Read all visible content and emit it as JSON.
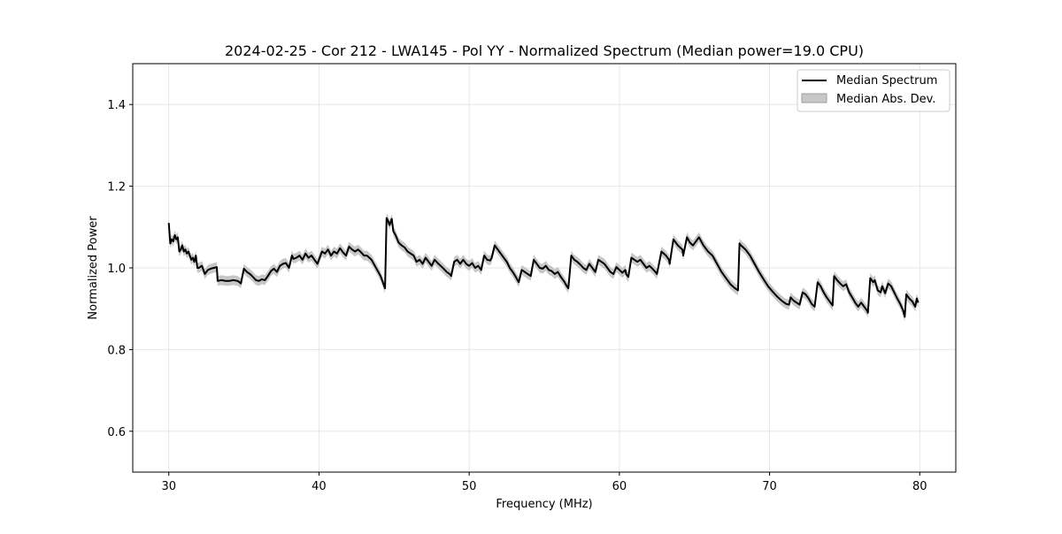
{
  "chart_data": {
    "type": "line",
    "title": "2024-02-25 - Cor 212 - LWA145 - Pol YY - Normalized Spectrum (Median power=19.0 CPU)",
    "xlabel": "Frequency (MHz)",
    "ylabel": "Normalized Power",
    "xlim": [
      27.6,
      82.4
    ],
    "ylim": [
      0.5,
      1.5
    ],
    "xticks": [
      30,
      40,
      50,
      60,
      70,
      80
    ],
    "xtick_labels": [
      "30",
      "40",
      "50",
      "60",
      "70",
      "80"
    ],
    "yticks": [
      0.6,
      0.8,
      1.0,
      1.2,
      1.4
    ],
    "ytick_labels": [
      "0.6",
      "0.8",
      "1.0",
      "1.2",
      "1.4"
    ],
    "grid": true,
    "legend_location": "top-right",
    "legend": [
      "Median Spectrum",
      "Median Abs. Dev."
    ],
    "colors": {
      "line": "#000000",
      "band": "#bdbdbd",
      "grid": "#e6e6e6"
    },
    "series": [
      {
        "name": "Median Spectrum",
        "x": [
          30.0,
          30.1,
          30.2,
          30.3,
          30.4,
          30.5,
          30.6,
          30.7,
          30.8,
          30.9,
          31.0,
          31.1,
          31.2,
          31.3,
          31.5,
          31.6,
          31.7,
          31.8,
          31.9,
          32.0,
          32.2,
          32.4,
          32.6,
          32.8,
          33.0,
          33.2,
          33.25,
          33.5,
          33.8,
          34.0,
          34.3,
          34.6,
          34.8,
          35.0,
          35.2,
          35.4,
          35.6,
          35.8,
          36.0,
          36.2,
          36.4,
          36.6,
          36.8,
          37.0,
          37.2,
          37.4,
          37.6,
          37.8,
          38.0,
          38.2,
          38.3,
          38.5,
          38.7,
          38.9,
          39.1,
          39.3,
          39.5,
          39.7,
          39.9,
          40.0,
          40.2,
          40.4,
          40.6,
          40.8,
          41.0,
          41.2,
          41.4,
          41.6,
          41.8,
          42.0,
          42.2,
          42.4,
          42.6,
          42.8,
          43.0,
          43.2,
          43.5,
          43.8,
          44.1,
          44.4,
          44.5,
          44.6,
          44.7,
          44.85,
          44.95,
          45.1,
          45.3,
          45.5,
          45.7,
          45.9,
          46.1,
          46.3,
          46.5,
          46.7,
          46.9,
          47.1,
          47.3,
          47.5,
          47.7,
          47.9,
          48.1,
          48.3,
          48.5,
          48.7,
          48.8,
          49.0,
          49.2,
          49.4,
          49.6,
          49.8,
          50.0,
          50.2,
          50.4,
          50.6,
          50.8,
          51.0,
          51.2,
          51.4,
          51.5,
          51.7,
          51.9,
          52.1,
          52.3,
          52.5,
          52.7,
          52.9,
          53.1,
          53.3,
          53.5,
          53.7,
          53.9,
          54.1,
          54.3,
          54.5,
          54.7,
          54.9,
          55.1,
          55.3,
          55.5,
          55.7,
          55.9,
          56.1,
          56.3,
          56.5,
          56.6,
          56.8,
          57.0,
          57.2,
          57.4,
          57.6,
          57.8,
          58.0,
          58.2,
          58.4,
          58.6,
          58.8,
          59.0,
          59.2,
          59.4,
          59.6,
          59.8,
          60.0,
          60.2,
          60.4,
          60.45,
          60.6,
          60.8,
          61.0,
          61.2,
          61.4,
          61.6,
          61.8,
          62.0,
          62.2,
          62.4,
          62.5,
          62.8,
          63.1,
          63.3,
          63.35,
          63.6,
          63.9,
          64.2,
          64.25,
          64.5,
          64.7,
          64.9,
          65.0,
          65.3,
          65.6,
          65.9,
          66.2,
          66.5,
          66.8,
          67.1,
          67.4,
          67.7,
          67.9,
          68.0,
          68.1,
          68.4,
          68.7,
          69.0,
          69.3,
          69.6,
          69.9,
          70.2,
          70.5,
          70.8,
          71.1,
          71.3,
          71.4,
          71.6,
          71.8,
          72.0,
          72.2,
          72.4,
          72.6,
          72.8,
          73.0,
          73.2,
          73.4,
          73.6,
          73.8,
          74.0,
          74.2,
          74.3,
          74.5,
          74.7,
          74.9,
          75.1,
          75.3,
          75.5,
          75.7,
          75.9,
          76.1,
          76.3,
          76.5,
          76.55,
          76.7,
          76.9,
          77.0,
          77.2,
          77.4,
          77.5,
          77.7,
          77.9,
          78.1,
          78.3,
          78.5,
          78.7,
          78.9,
          79.0,
          79.1,
          79.3,
          79.5,
          79.7,
          79.8,
          79.9
        ],
        "y": [
          1.11,
          1.06,
          1.07,
          1.065,
          1.08,
          1.07,
          1.075,
          1.04,
          1.045,
          1.055,
          1.04,
          1.045,
          1.035,
          1.04,
          1.02,
          1.025,
          1.015,
          1.03,
          1.0,
          1.0,
          1.005,
          0.985,
          0.995,
          0.998,
          1.0,
          1.002,
          0.968,
          0.97,
          0.968,
          0.968,
          0.97,
          0.968,
          0.962,
          0.998,
          0.99,
          0.985,
          0.978,
          0.97,
          0.968,
          0.972,
          0.97,
          0.98,
          0.992,
          0.998,
          0.99,
          1.005,
          1.01,
          1.012,
          1.0,
          1.03,
          1.022,
          1.025,
          1.03,
          1.02,
          1.035,
          1.025,
          1.03,
          1.02,
          1.01,
          1.02,
          1.04,
          1.035,
          1.045,
          1.03,
          1.04,
          1.035,
          1.048,
          1.038,
          1.03,
          1.052,
          1.045,
          1.04,
          1.045,
          1.038,
          1.03,
          1.03,
          1.02,
          1.0,
          0.98,
          0.95,
          1.122,
          1.115,
          1.105,
          1.12,
          1.09,
          1.08,
          1.062,
          1.055,
          1.05,
          1.04,
          1.035,
          1.03,
          1.015,
          1.02,
          1.01,
          1.025,
          1.015,
          1.005,
          1.02,
          1.012,
          1.005,
          0.998,
          0.99,
          0.985,
          0.98,
          1.015,
          1.02,
          1.01,
          1.02,
          1.01,
          1.005,
          1.012,
          1.0,
          1.005,
          0.995,
          1.03,
          1.02,
          1.018,
          1.025,
          1.055,
          1.045,
          1.035,
          1.025,
          1.015,
          1.0,
          0.99,
          0.978,
          0.965,
          0.995,
          0.99,
          0.985,
          0.98,
          1.02,
          1.01,
          1.0,
          0.998,
          1.005,
          0.995,
          0.992,
          0.985,
          0.99,
          0.978,
          0.968,
          0.955,
          0.95,
          1.03,
          1.02,
          1.015,
          1.008,
          1.0,
          0.995,
          1.01,
          1.0,
          0.99,
          1.02,
          1.015,
          1.01,
          1.0,
          0.99,
          0.985,
          1.002,
          0.995,
          0.988,
          0.995,
          0.985,
          0.978,
          1.025,
          1.02,
          1.015,
          1.02,
          1.01,
          1.0,
          1.005,
          0.998,
          0.99,
          0.985,
          1.04,
          1.03,
          1.02,
          1.01,
          1.07,
          1.055,
          1.045,
          1.03,
          1.075,
          1.062,
          1.055,
          1.06,
          1.075,
          1.055,
          1.04,
          1.03,
          1.01,
          0.99,
          0.975,
          0.96,
          0.95,
          0.945,
          1.06,
          1.055,
          1.045,
          1.03,
          1.01,
          0.99,
          0.972,
          0.955,
          0.942,
          0.93,
          0.92,
          0.912,
          0.91,
          0.928,
          0.92,
          0.915,
          0.91,
          0.94,
          0.935,
          0.925,
          0.912,
          0.905,
          0.965,
          0.955,
          0.94,
          0.928,
          0.918,
          0.908,
          0.98,
          0.97,
          0.962,
          0.955,
          0.96,
          0.94,
          0.928,
          0.915,
          0.905,
          0.915,
          0.905,
          0.895,
          0.89,
          0.975,
          0.965,
          0.97,
          0.945,
          0.94,
          0.955,
          0.938,
          0.962,
          0.955,
          0.94,
          0.925,
          0.912,
          0.895,
          0.88,
          0.935,
          0.925,
          0.918,
          0.905,
          0.925,
          0.915
        ]
      }
    ],
    "mad_band": 0.012
  }
}
